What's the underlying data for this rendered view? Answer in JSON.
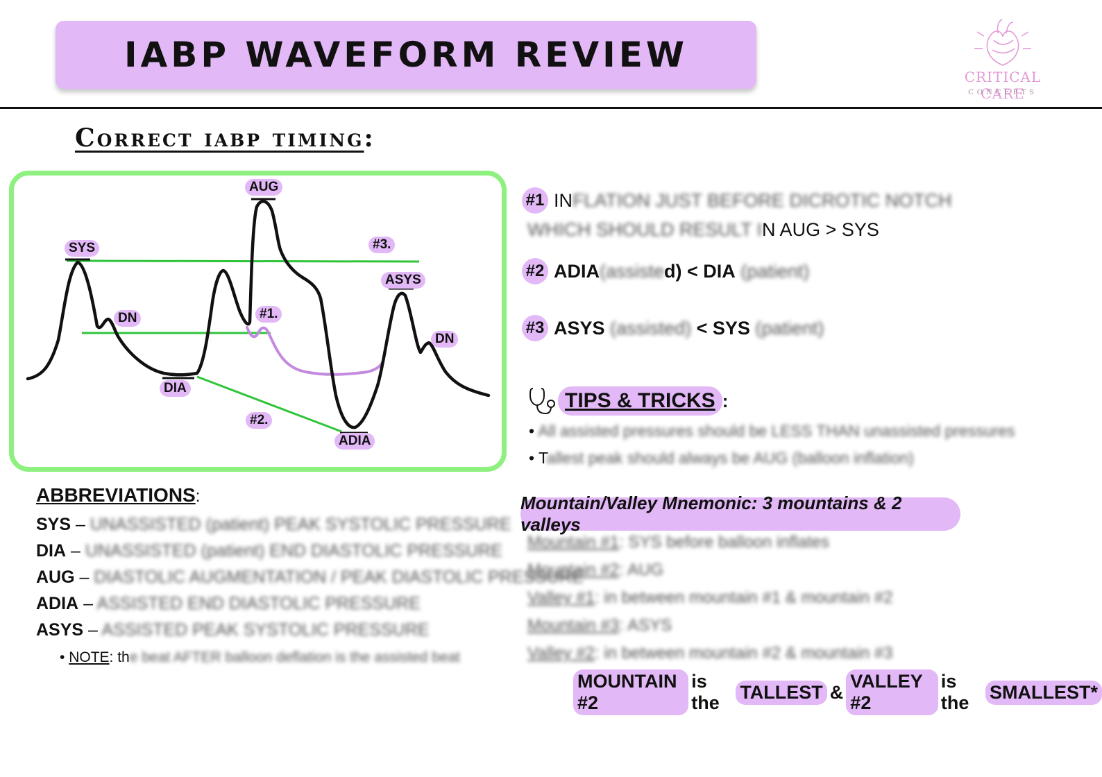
{
  "title": "IABP WAVEFORM REVIEW",
  "logo": {
    "name": "CRITICAL CARE",
    "tagline": "CONCEPTS",
    "icon": "heart-icon"
  },
  "section_heading": "Correct iabp timing",
  "section_heading_colon": ":",
  "waveform": {
    "labels": {
      "sys": "SYS",
      "dn_left": "DN",
      "dia": "DIA",
      "aug": "AUG",
      "n1": "#1.",
      "n2": "#2.",
      "n3": "#3.",
      "adia": "ADIA",
      "asys": "ASYS",
      "dn_right": "DN"
    },
    "colors": {
      "box_border": "#8ef07f",
      "reference_line": "#2fc43a",
      "assisted_trace": "#c38ae0",
      "trace": "#111111",
      "bubble": "#e2b8f7"
    }
  },
  "timing": [
    {
      "num": "#1",
      "lead": "IN",
      "blurred": "FLATION JUST BEFORE DICROTIC NOTCH",
      "line2_blurred": "WHICH SHOULD RESULT I",
      "line2_tail": "N AUG > SYS"
    },
    {
      "num": "#2",
      "term": "ADIA",
      "blurred1": "(assiste",
      "mid": "d) < DIA",
      "blurred2": "(patient)"
    },
    {
      "num": "#3",
      "term": "ASYS",
      "blurred1": "(assisted)",
      "mid": "< SYS",
      "blurred2": "(patient)"
    }
  ],
  "tips": {
    "icon": "stethoscope-icon",
    "heading": "TIPS & TRICKS",
    "colon": ":",
    "items": [
      {
        "lead": "",
        "blurred": "All assisted pressures should be LESS THAN unassisted pressures"
      },
      {
        "lead": "T",
        "blurred": "allest peak should always be AUG (balloon inflation)"
      }
    ]
  },
  "mnemonic": {
    "heading": "Mountain/Valley Mnemonic: 3 mountains & 2 valleys",
    "lines": [
      {
        "label": "Mountain #1",
        "blurred": ": SYS before balloon inflates"
      },
      {
        "label": "Mountain #2",
        "blurred": ": AUG"
      },
      {
        "label": "Valley #1",
        "blurred": ": in between mountain #1 & mountain #2"
      },
      {
        "label": "Mountain #3",
        "blurred": ": ASYS"
      },
      {
        "label": "Valley #2",
        "blurred": ": in between mountain #2 & mountain #3"
      }
    ],
    "summary": {
      "p1": "MOUNTAIN #2",
      "p2": "is the",
      "p3": "TALLEST",
      "p4": "&",
      "p5": "VALLEY #2",
      "p6": "is the",
      "p7": "SMALLEST*"
    }
  },
  "abbreviations": {
    "heading": "ABBREVIATIONS",
    "colon": ":",
    "rows": [
      {
        "key": "SYS",
        "dash": "–",
        "blurred": "UNASSISTED (patient) PEAK SYSTOLIC PRESSURE"
      },
      {
        "key": "DIA",
        "dash": "–",
        "blurred": "UNASSISTED (patient) END DIASTOLIC PRESSURE"
      },
      {
        "key": "AUG",
        "dash": "–",
        "blurred": "DIASTOLIC AUGMENTATION / PEAK DIASTOLIC PRESSURE"
      },
      {
        "key": "ADIA",
        "dash": "–",
        "blurred": "ASSISTED END DIASTOLIC PRESSURE"
      },
      {
        "key": "ASYS",
        "dash": "–",
        "blurred": "ASSISTED PEAK SYSTOLIC PRESSURE"
      }
    ],
    "note_label": "NOTE",
    "note_lead": ": th",
    "note_blurred": "e beat AFTER balloon deflation is the assisted beat"
  }
}
